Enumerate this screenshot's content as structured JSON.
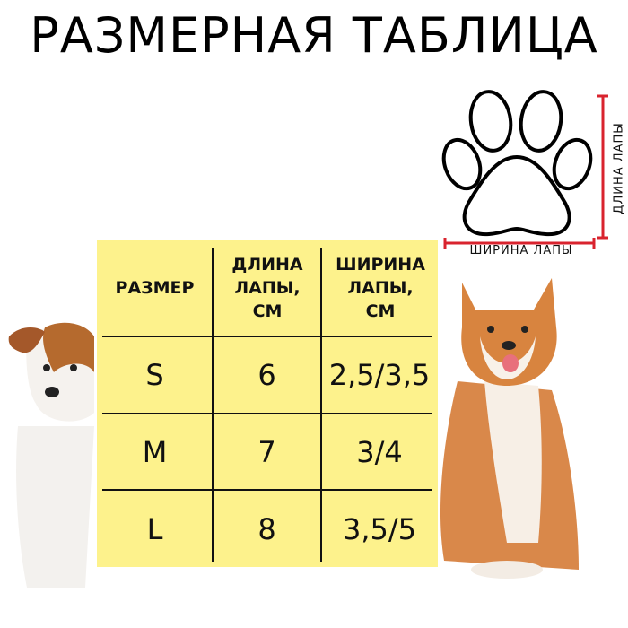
{
  "title": "РАЗМЕРНАЯ ТАБЛИЦА",
  "diagram": {
    "icon": "paw-outline-icon",
    "width_label": "ШИРИНА ЛАПЫ",
    "length_label": "ДЛИНА ЛАПЫ",
    "measure_color": "#d9232e"
  },
  "table": {
    "background": "#fdf28c",
    "headers": [
      "РАЗМЕР",
      "ДЛИНА ЛАПЫ, СМ",
      "ШИРИНА ЛАПЫ, СМ"
    ],
    "rows": [
      [
        "S",
        "6",
        "2,5/3,5"
      ],
      [
        "M",
        "7",
        "3/4"
      ],
      [
        "L",
        "8",
        "3,5/5"
      ]
    ]
  }
}
